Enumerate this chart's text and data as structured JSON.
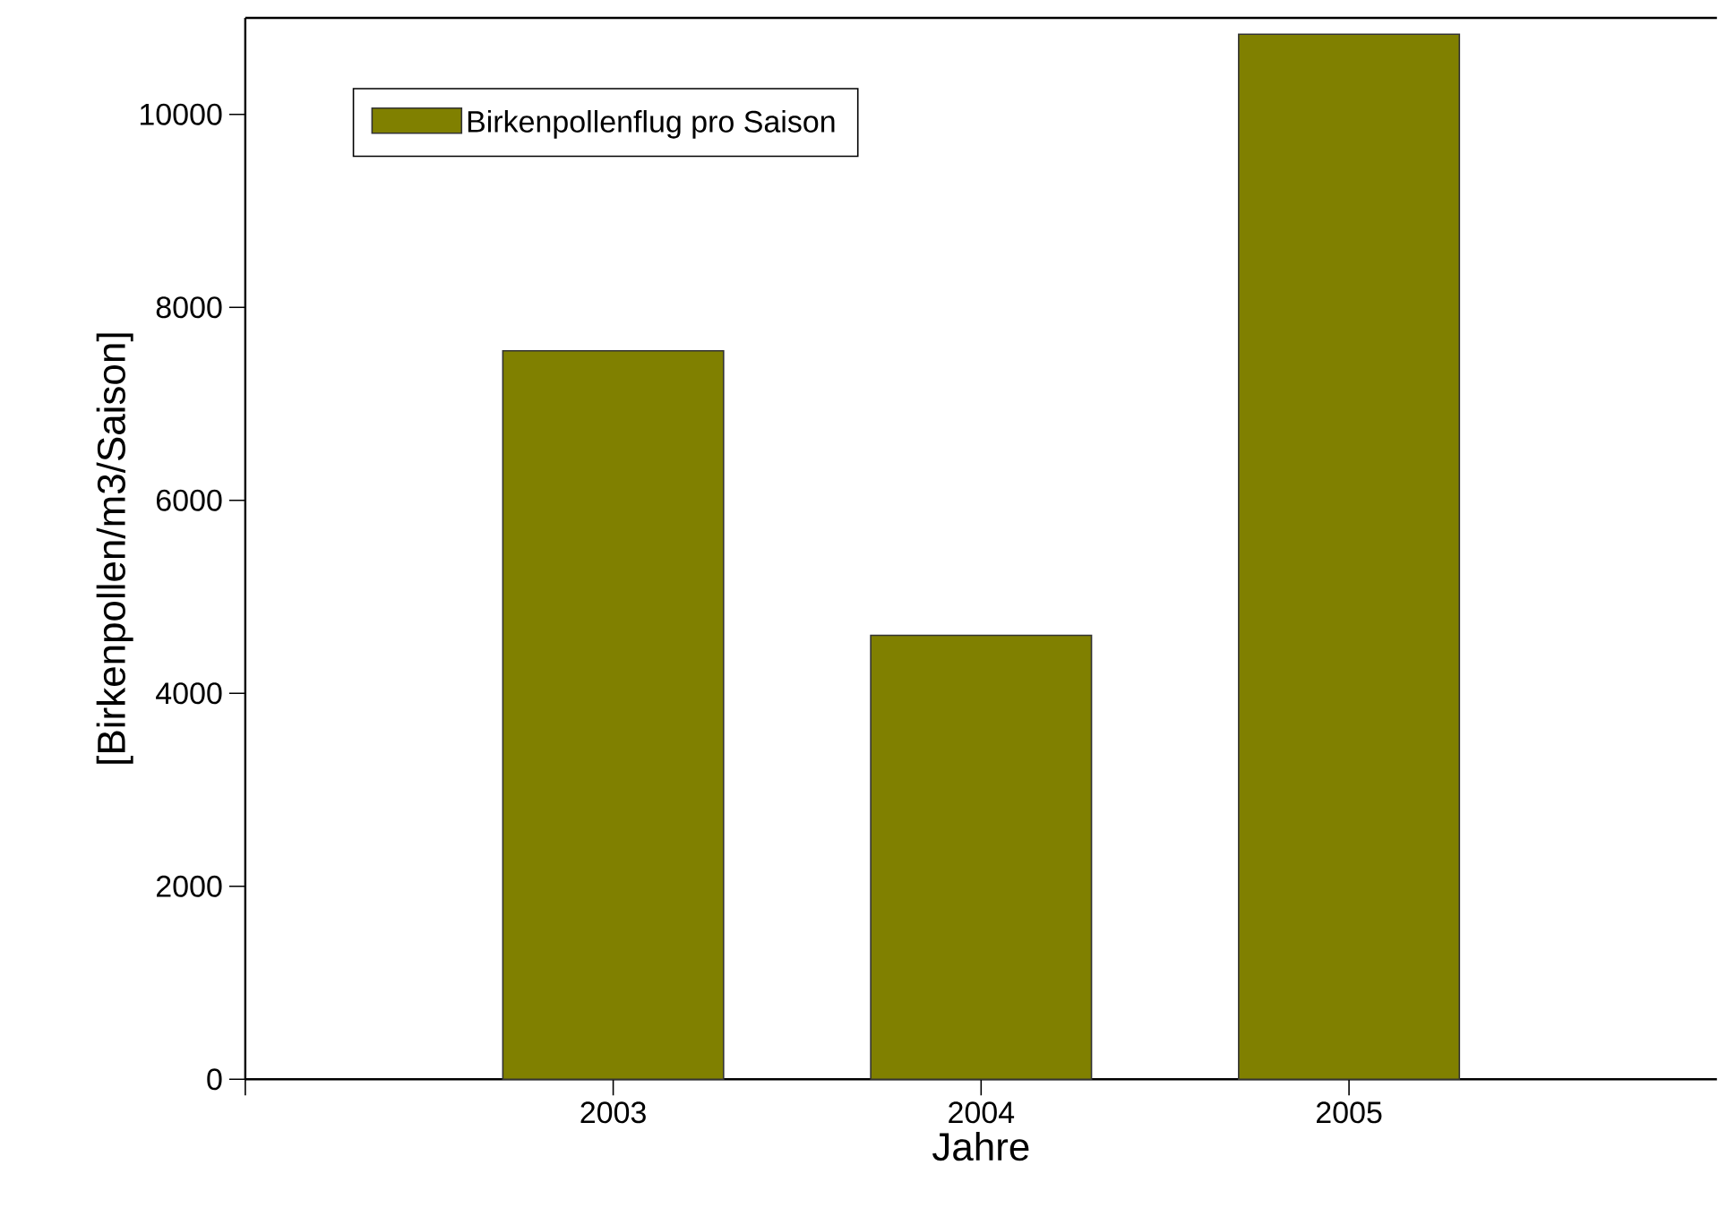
{
  "chart_data": {
    "type": "bar",
    "xlabel": "Jahre",
    "ylabel": "[Birkenpollen/m3/Saison]",
    "x": [
      2003,
      2004,
      2005
    ],
    "series": [
      {
        "name": "Birkenpollenflug pro Saison",
        "color": "#808000",
        "values": [
          7550,
          4600,
          10830
        ]
      }
    ],
    "xlim": [
      2002,
      2006
    ],
    "xticks": [
      {
        "value": 2002,
        "label": null
      },
      2003,
      2004,
      2005
    ],
    "ylim": [
      0,
      11000
    ],
    "yticks": [
      0,
      2000,
      4000,
      6000,
      8000,
      10000
    ],
    "legend": "top left",
    "grid": false
  }
}
